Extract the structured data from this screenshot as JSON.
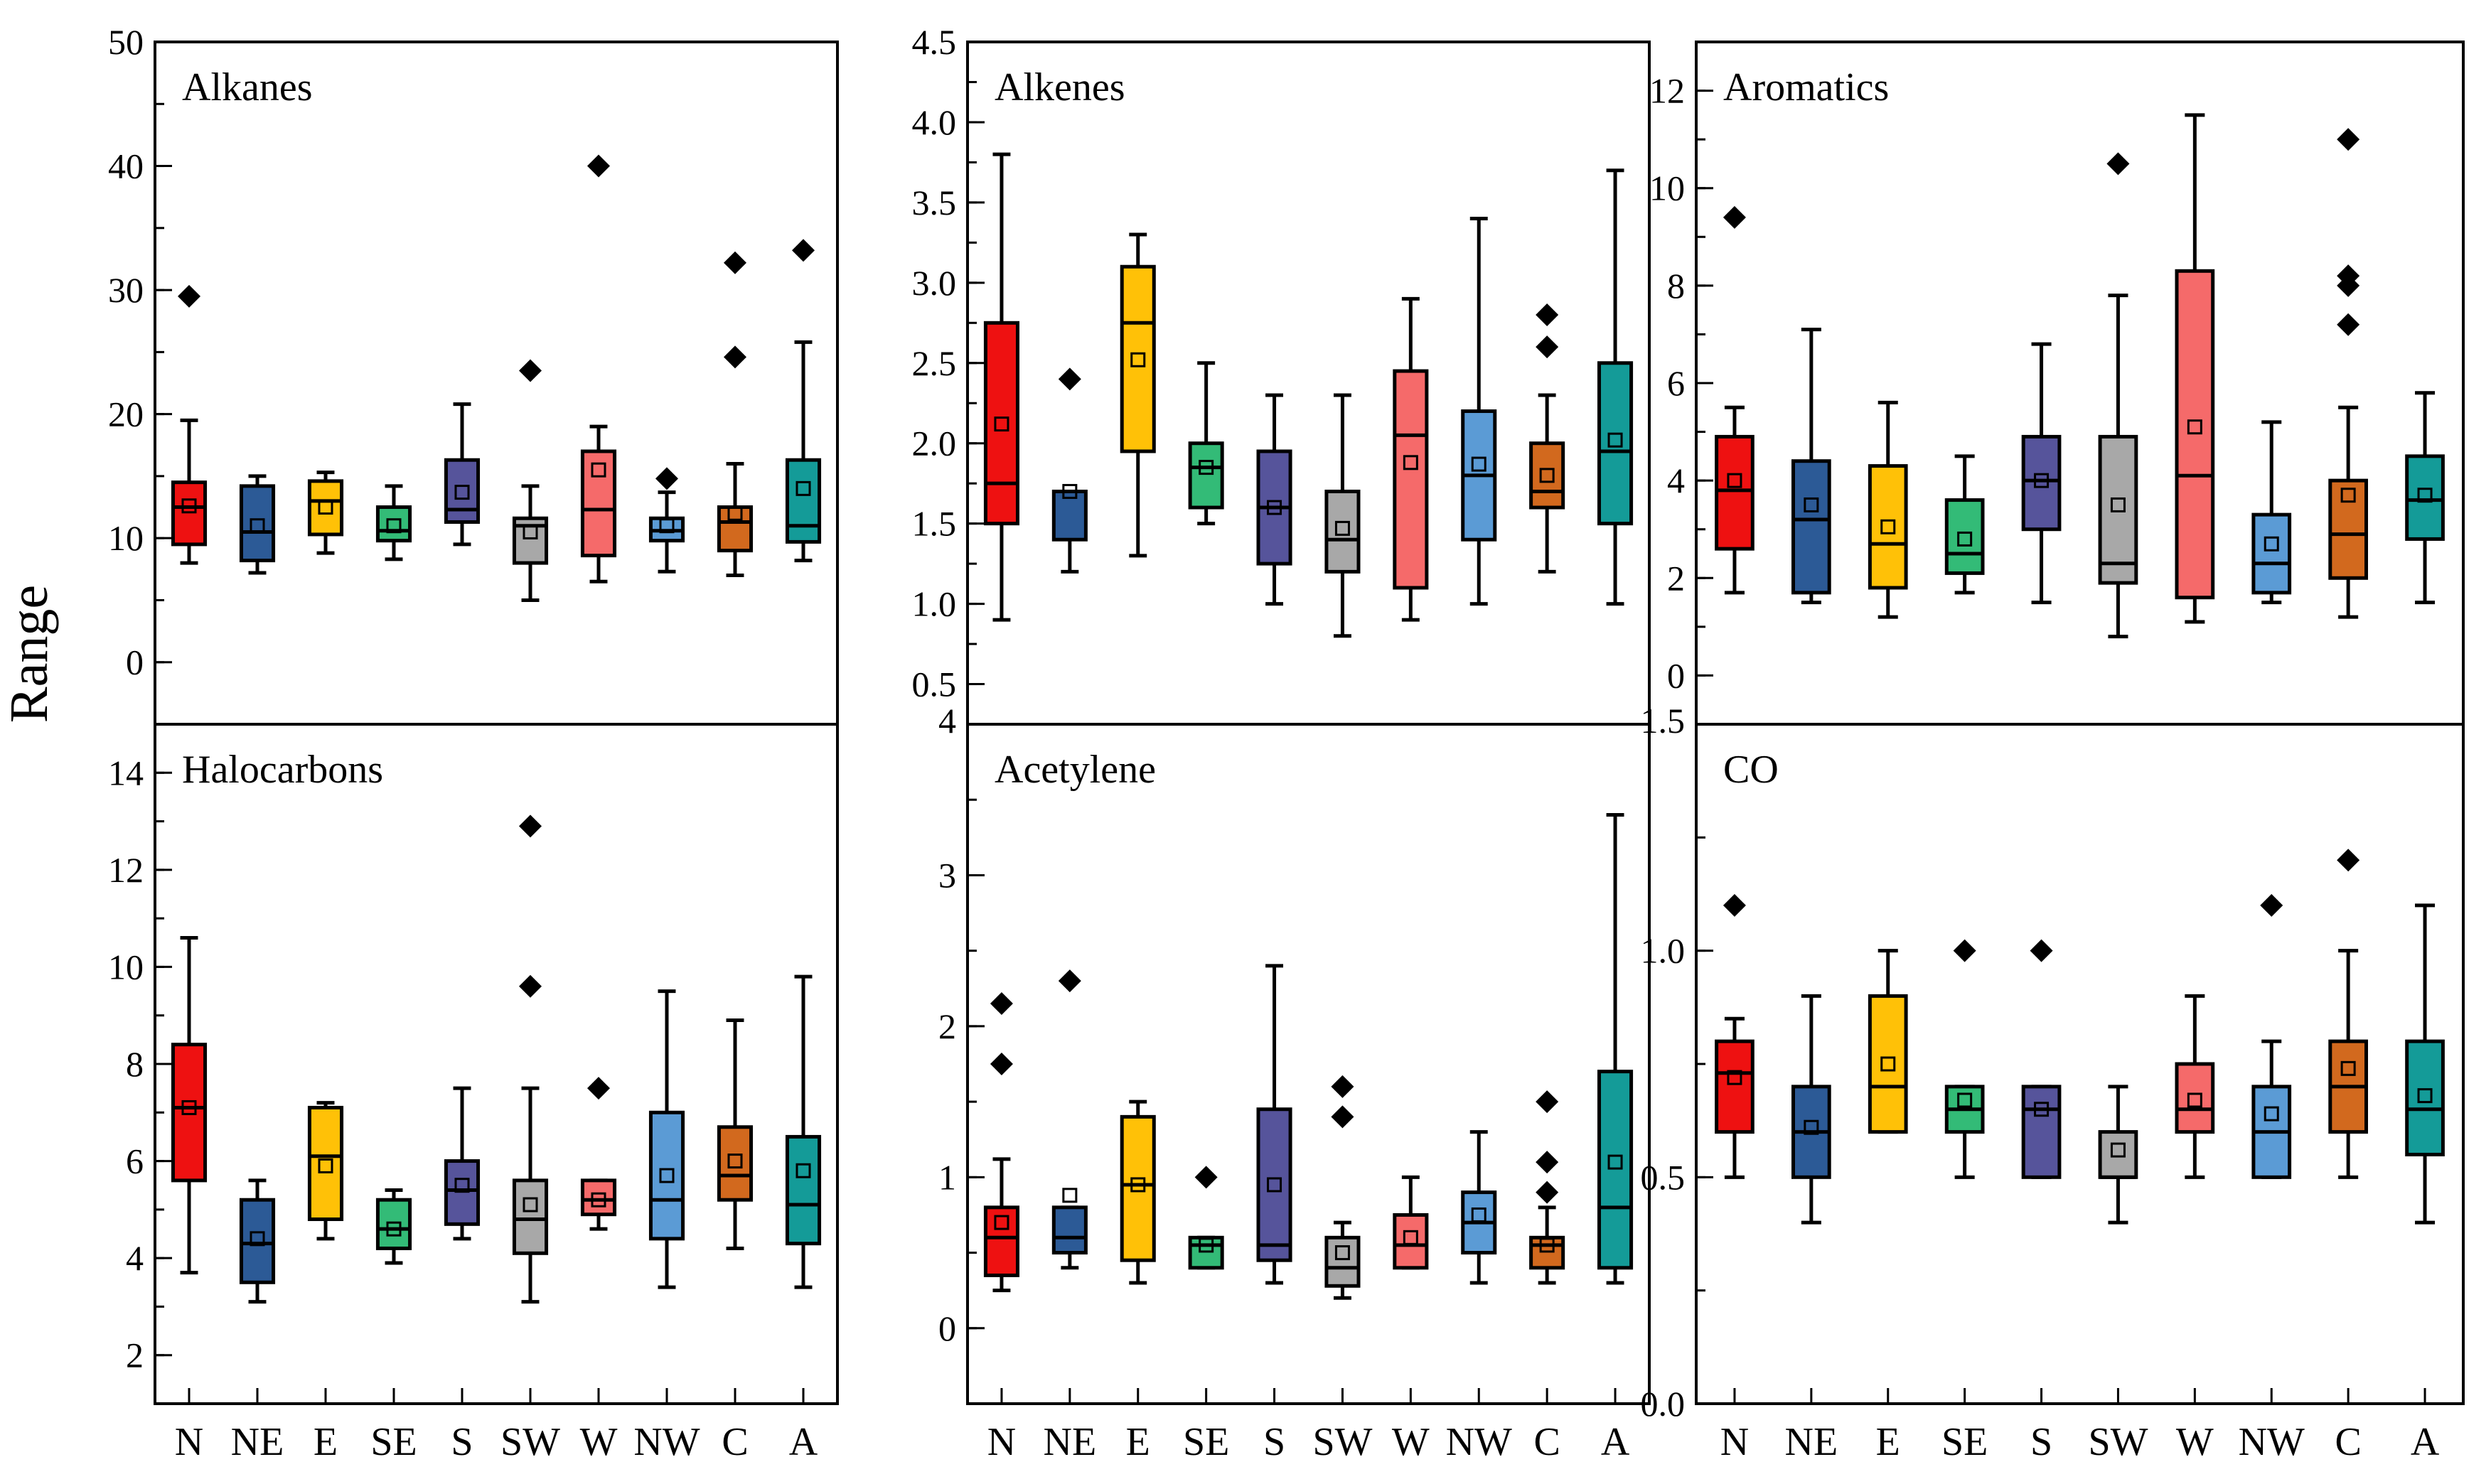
{
  "figure": {
    "y_axis_label": "Range",
    "categories": [
      "N",
      "NE",
      "E",
      "SE",
      "S",
      "SW",
      "W",
      "NW",
      "C",
      "A"
    ],
    "box_colors": [
      "#ee1111",
      "#2c5a96",
      "#ffc107",
      "#33bb77",
      "#56549b",
      "#a8a8a8",
      "#f56a6a",
      "#5b9bd5",
      "#d2691e",
      "#149b98"
    ]
  },
  "chart_data": [
    {
      "type": "box",
      "title": "Alkanes",
      "ylabel": "Range",
      "ylim": [
        -5,
        50
      ],
      "yticks": [
        0,
        10,
        20,
        30,
        40,
        50
      ],
      "minor_step": 5,
      "categories": [
        "N",
        "NE",
        "E",
        "SE",
        "S",
        "SW",
        "W",
        "NW",
        "C",
        "A"
      ],
      "boxes": [
        {
          "whisker_low": 8,
          "q1": 9.5,
          "median": 12.5,
          "q3": 14.5,
          "whisker_high": 19.5,
          "mean": 12.6,
          "outliers": [
            29.5
          ]
        },
        {
          "whisker_low": 7.2,
          "q1": 8.2,
          "median": 10.5,
          "q3": 14.2,
          "whisker_high": 15,
          "mean": 11,
          "outliers": []
        },
        {
          "whisker_low": 8.8,
          "q1": 10.3,
          "median": 13,
          "q3": 14.6,
          "whisker_high": 15.3,
          "mean": 12.5,
          "outliers": []
        },
        {
          "whisker_low": 8.3,
          "q1": 9.8,
          "median": 10.6,
          "q3": 12.5,
          "whisker_high": 14.2,
          "mean": 11,
          "outliers": []
        },
        {
          "whisker_low": 9.5,
          "q1": 11.3,
          "median": 12.3,
          "q3": 16.3,
          "whisker_high": 20.8,
          "mean": 13.7,
          "outliers": []
        },
        {
          "whisker_low": 5,
          "q1": 8,
          "median": 11,
          "q3": 11.6,
          "whisker_high": 14.2,
          "mean": 10.5,
          "outliers": [
            23.5
          ]
        },
        {
          "whisker_low": 6.5,
          "q1": 8.6,
          "median": 12.3,
          "q3": 17,
          "whisker_high": 19,
          "mean": 15.5,
          "outliers": [
            40
          ]
        },
        {
          "whisker_low": 7.3,
          "q1": 9.8,
          "median": 10.6,
          "q3": 11.6,
          "whisker_high": 13.7,
          "mean": 11,
          "outliers": [
            14.8
          ]
        },
        {
          "whisker_low": 7,
          "q1": 9,
          "median": 11.3,
          "q3": 12.5,
          "whisker_high": 16,
          "mean": 12,
          "outliers": [
            24.6,
            32.2
          ]
        },
        {
          "whisker_low": 8.2,
          "q1": 9.7,
          "median": 11,
          "q3": 16.3,
          "whisker_high": 25.8,
          "mean": 14,
          "outliers": [
            33.2
          ]
        }
      ]
    },
    {
      "type": "box",
      "title": "Alkenes",
      "ylabel": "",
      "ylim": [
        0.25,
        4.5
      ],
      "yticks": [
        0.5,
        1.0,
        1.5,
        2.0,
        2.5,
        3.0,
        3.5,
        4.0,
        4.5
      ],
      "minor_step": 0.25,
      "categories": [
        "N",
        "NE",
        "E",
        "SE",
        "S",
        "SW",
        "W",
        "NW",
        "C",
        "A"
      ],
      "boxes": [
        {
          "whisker_low": 0.9,
          "q1": 1.5,
          "median": 1.75,
          "q3": 2.75,
          "whisker_high": 3.8,
          "mean": 2.12,
          "outliers": []
        },
        {
          "whisker_low": 1.2,
          "q1": 1.4,
          "median": 1.7,
          "q3": 1.7,
          "whisker_high": 1.7,
          "mean": 1.7,
          "outliers": [
            2.4
          ]
        },
        {
          "whisker_low": 1.3,
          "q1": 1.95,
          "median": 2.75,
          "q3": 3.1,
          "whisker_high": 3.3,
          "mean": 2.52,
          "outliers": []
        },
        {
          "whisker_low": 1.5,
          "q1": 1.6,
          "median": 1.85,
          "q3": 2.0,
          "whisker_high": 2.5,
          "mean": 1.85,
          "outliers": []
        },
        {
          "whisker_low": 1.0,
          "q1": 1.25,
          "median": 1.6,
          "q3": 1.95,
          "whisker_high": 2.3,
          "mean": 1.6,
          "outliers": []
        },
        {
          "whisker_low": 0.8,
          "q1": 1.2,
          "median": 1.4,
          "q3": 1.7,
          "whisker_high": 2.3,
          "mean": 1.47,
          "outliers": []
        },
        {
          "whisker_low": 0.9,
          "q1": 1.1,
          "median": 2.05,
          "q3": 2.45,
          "whisker_high": 2.9,
          "mean": 1.88,
          "outliers": []
        },
        {
          "whisker_low": 1.0,
          "q1": 1.4,
          "median": 1.8,
          "q3": 2.2,
          "whisker_high": 3.4,
          "mean": 1.87,
          "outliers": []
        },
        {
          "whisker_low": 1.2,
          "q1": 1.6,
          "median": 1.7,
          "q3": 2.0,
          "whisker_high": 2.3,
          "mean": 1.8,
          "outliers": [
            2.6,
            2.8
          ]
        },
        {
          "whisker_low": 1.0,
          "q1": 1.5,
          "median": 1.95,
          "q3": 2.5,
          "whisker_high": 3.7,
          "mean": 2.02,
          "outliers": []
        }
      ]
    },
    {
      "type": "box",
      "title": "Aromatics",
      "ylabel": "",
      "ylim": [
        -1,
        13
      ],
      "yticks": [
        0,
        2,
        4,
        6,
        8,
        10,
        12
      ],
      "minor_step": 1,
      "categories": [
        "N",
        "NE",
        "E",
        "SE",
        "S",
        "SW",
        "W",
        "NW",
        "C",
        "A"
      ],
      "boxes": [
        {
          "whisker_low": 1.7,
          "q1": 2.6,
          "median": 3.8,
          "q3": 4.9,
          "whisker_high": 5.5,
          "mean": 4.0,
          "outliers": [
            9.4
          ]
        },
        {
          "whisker_low": 1.5,
          "q1": 1.7,
          "median": 3.2,
          "q3": 4.4,
          "whisker_high": 7.1,
          "mean": 3.5,
          "outliers": []
        },
        {
          "whisker_low": 1.2,
          "q1": 1.8,
          "median": 2.7,
          "q3": 4.3,
          "whisker_high": 5.6,
          "mean": 3.05,
          "outliers": []
        },
        {
          "whisker_low": 1.7,
          "q1": 2.1,
          "median": 2.5,
          "q3": 3.6,
          "whisker_high": 4.5,
          "mean": 2.8,
          "outliers": []
        },
        {
          "whisker_low": 1.5,
          "q1": 3.0,
          "median": 4.0,
          "q3": 4.9,
          "whisker_high": 6.8,
          "mean": 4.0,
          "outliers": []
        },
        {
          "whisker_low": 0.8,
          "q1": 1.9,
          "median": 2.3,
          "q3": 4.9,
          "whisker_high": 7.8,
          "mean": 3.5,
          "outliers": [
            10.5
          ]
        },
        {
          "whisker_low": 1.1,
          "q1": 1.6,
          "median": 4.1,
          "q3": 8.3,
          "whisker_high": 11.5,
          "mean": 5.1,
          "outliers": []
        },
        {
          "whisker_low": 1.5,
          "q1": 1.7,
          "median": 2.3,
          "q3": 3.3,
          "whisker_high": 5.2,
          "mean": 2.7,
          "outliers": []
        },
        {
          "whisker_low": 1.2,
          "q1": 2.0,
          "median": 2.9,
          "q3": 4.0,
          "whisker_high": 5.5,
          "mean": 3.7,
          "outliers": [
            7.2,
            8.0,
            8.2,
            11.0
          ]
        },
        {
          "whisker_low": 1.5,
          "q1": 2.8,
          "median": 3.6,
          "q3": 4.5,
          "whisker_high": 5.8,
          "mean": 3.7,
          "outliers": []
        }
      ]
    },
    {
      "type": "box",
      "title": "Halocarbons",
      "ylabel": "",
      "ylim": [
        1,
        15
      ],
      "yticks": [
        2,
        4,
        6,
        8,
        10,
        12,
        14
      ],
      "minor_step": 1,
      "categories": [
        "N",
        "NE",
        "E",
        "SE",
        "S",
        "SW",
        "W",
        "NW",
        "C",
        "A"
      ],
      "boxes": [
        {
          "whisker_low": 3.7,
          "q1": 5.6,
          "median": 7.1,
          "q3": 8.4,
          "whisker_high": 10.6,
          "mean": 7.1,
          "outliers": []
        },
        {
          "whisker_low": 3.1,
          "q1": 3.5,
          "median": 4.3,
          "q3": 5.2,
          "whisker_high": 5.6,
          "mean": 4.4,
          "outliers": []
        },
        {
          "whisker_low": 4.4,
          "q1": 4.8,
          "median": 6.1,
          "q3": 7.1,
          "whisker_high": 7.2,
          "mean": 5.9,
          "outliers": []
        },
        {
          "whisker_low": 3.9,
          "q1": 4.2,
          "median": 4.6,
          "q3": 5.2,
          "whisker_high": 5.4,
          "mean": 4.6,
          "outliers": []
        },
        {
          "whisker_low": 4.4,
          "q1": 4.7,
          "median": 5.4,
          "q3": 6.0,
          "whisker_high": 7.5,
          "mean": 5.5,
          "outliers": []
        },
        {
          "whisker_low": 3.1,
          "q1": 4.1,
          "median": 4.8,
          "q3": 5.6,
          "whisker_high": 7.5,
          "mean": 5.1,
          "outliers": [
            9.6,
            12.9
          ]
        },
        {
          "whisker_low": 4.6,
          "q1": 4.9,
          "median": 5.2,
          "q3": 5.6,
          "whisker_high": 5.6,
          "mean": 5.2,
          "outliers": [
            7.5
          ]
        },
        {
          "whisker_low": 3.4,
          "q1": 4.4,
          "median": 5.2,
          "q3": 7.0,
          "whisker_high": 9.5,
          "mean": 5.7,
          "outliers": []
        },
        {
          "whisker_low": 4.2,
          "q1": 5.2,
          "median": 5.7,
          "q3": 6.7,
          "whisker_high": 8.9,
          "mean": 6.0,
          "outliers": []
        },
        {
          "whisker_low": 3.4,
          "q1": 4.3,
          "median": 5.1,
          "q3": 6.5,
          "whisker_high": 9.8,
          "mean": 5.8,
          "outliers": []
        }
      ]
    },
    {
      "type": "box",
      "title": "Acetylene",
      "ylabel": "",
      "ylim": [
        -0.5,
        4
      ],
      "yticks": [
        0,
        1,
        2,
        3,
        4
      ],
      "minor_step": 0.5,
      "categories": [
        "N",
        "NE",
        "E",
        "SE",
        "S",
        "SW",
        "W",
        "NW",
        "C",
        "A"
      ],
      "boxes": [
        {
          "whisker_low": 0.25,
          "q1": 0.35,
          "median": 0.6,
          "q3": 0.8,
          "whisker_high": 1.12,
          "mean": 0.7,
          "outliers": [
            1.75,
            2.15
          ]
        },
        {
          "whisker_low": 0.4,
          "q1": 0.5,
          "median": 0.6,
          "q3": 0.8,
          "whisker_high": 0.8,
          "mean": 0.88,
          "outliers": [
            2.3
          ]
        },
        {
          "whisker_low": 0.3,
          "q1": 0.45,
          "median": 0.95,
          "q3": 1.4,
          "whisker_high": 1.5,
          "mean": 0.95,
          "outliers": []
        },
        {
          "whisker_low": 0.4,
          "q1": 0.4,
          "median": 0.55,
          "q3": 0.6,
          "whisker_high": 0.6,
          "mean": 0.55,
          "outliers": [
            1.0
          ]
        },
        {
          "whisker_low": 0.3,
          "q1": 0.45,
          "median": 0.55,
          "q3": 1.45,
          "whisker_high": 2.4,
          "mean": 0.95,
          "outliers": []
        },
        {
          "whisker_low": 0.2,
          "q1": 0.28,
          "median": 0.4,
          "q3": 0.6,
          "whisker_high": 0.7,
          "mean": 0.5,
          "outliers": [
            1.4,
            1.6
          ]
        },
        {
          "whisker_low": 0.4,
          "q1": 0.4,
          "median": 0.55,
          "q3": 0.75,
          "whisker_high": 1.0,
          "mean": 0.6,
          "outliers": []
        },
        {
          "whisker_low": 0.3,
          "q1": 0.5,
          "median": 0.7,
          "q3": 0.9,
          "whisker_high": 1.3,
          "mean": 0.75,
          "outliers": []
        },
        {
          "whisker_low": 0.3,
          "q1": 0.4,
          "median": 0.55,
          "q3": 0.6,
          "whisker_high": 0.8,
          "mean": 0.55,
          "outliers": [
            0.9,
            1.1,
            1.5
          ]
        },
        {
          "whisker_low": 0.3,
          "q1": 0.4,
          "median": 0.8,
          "q3": 1.7,
          "whisker_high": 3.4,
          "mean": 1.1,
          "outliers": []
        }
      ]
    },
    {
      "type": "box",
      "title": "CO",
      "ylabel": "",
      "ylim": [
        0,
        1.5
      ],
      "yticks": [
        0.0,
        0.5,
        1.0,
        1.5
      ],
      "minor_step": 0.25,
      "categories": [
        "N",
        "NE",
        "E",
        "SE",
        "S",
        "SW",
        "W",
        "NW",
        "C",
        "A"
      ],
      "boxes": [
        {
          "whisker_low": 0.5,
          "q1": 0.6,
          "median": 0.73,
          "q3": 0.8,
          "whisker_high": 0.85,
          "mean": 0.72,
          "outliers": [
            1.1
          ]
        },
        {
          "whisker_low": 0.4,
          "q1": 0.5,
          "median": 0.6,
          "q3": 0.7,
          "whisker_high": 0.9,
          "mean": 0.61,
          "outliers": []
        },
        {
          "whisker_low": 0.6,
          "q1": 0.6,
          "median": 0.7,
          "q3": 0.9,
          "whisker_high": 1.0,
          "mean": 0.75,
          "outliers": []
        },
        {
          "whisker_low": 0.5,
          "q1": 0.6,
          "median": 0.65,
          "q3": 0.7,
          "whisker_high": 0.7,
          "mean": 0.67,
          "outliers": [
            1.0
          ]
        },
        {
          "whisker_low": 0.5,
          "q1": 0.5,
          "median": 0.65,
          "q3": 0.7,
          "whisker_high": 0.7,
          "mean": 0.65,
          "outliers": [
            1.0
          ]
        },
        {
          "whisker_low": 0.4,
          "q1": 0.5,
          "median": 0.5,
          "q3": 0.6,
          "whisker_high": 0.7,
          "mean": 0.56,
          "outliers": []
        },
        {
          "whisker_low": 0.5,
          "q1": 0.6,
          "median": 0.65,
          "q3": 0.75,
          "whisker_high": 0.9,
          "mean": 0.67,
          "outliers": []
        },
        {
          "whisker_low": 0.5,
          "q1": 0.5,
          "median": 0.6,
          "q3": 0.7,
          "whisker_high": 0.8,
          "mean": 0.64,
          "outliers": [
            1.1
          ]
        },
        {
          "whisker_low": 0.5,
          "q1": 0.6,
          "median": 0.7,
          "q3": 0.8,
          "whisker_high": 1.0,
          "mean": 0.74,
          "outliers": [
            1.2
          ]
        },
        {
          "whisker_low": 0.4,
          "q1": 0.55,
          "median": 0.65,
          "q3": 0.8,
          "whisker_high": 1.1,
          "mean": 0.68,
          "outliers": []
        }
      ]
    }
  ]
}
